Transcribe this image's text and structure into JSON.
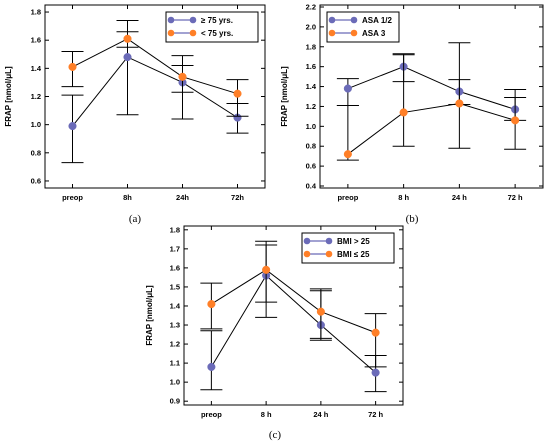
{
  "chart_data": [
    {
      "type": "line",
      "panel_label": "(a)",
      "categories": [
        "preop",
        "8h",
        "24h",
        "72h"
      ],
      "ylabel": "FRAP [nmol/μL]",
      "xlabel": "",
      "ylim": [
        0.55,
        1.85
      ],
      "yticks": [
        "0.6",
        "0.8",
        "1.0",
        "1.2",
        "1.4",
        "1.6",
        "1.8"
      ],
      "legend_position": "top-right",
      "error_bars": true,
      "grid": false,
      "series": [
        {
          "name": "≥ 75 yrs.",
          "color": "#6b6bb8",
          "values": [
            0.99,
            1.48,
            1.3,
            1.05
          ],
          "err_low": [
            0.73,
            1.07,
            1.04,
            0.94
          ],
          "err_high": [
            1.21,
            1.74,
            1.42,
            1.15
          ]
        },
        {
          "name": "< 75 yrs.",
          "color": "#ff7f27",
          "values": [
            1.41,
            1.61,
            1.34,
            1.22
          ],
          "err_low": [
            1.27,
            1.55,
            1.23,
            1.06
          ],
          "err_high": [
            1.52,
            1.66,
            1.49,
            1.32
          ]
        }
      ]
    },
    {
      "type": "line",
      "panel_label": "(b)",
      "categories": [
        "preop",
        "8 h",
        "24 h",
        "72 h"
      ],
      "ylabel": "FRAP [nmol/μL]",
      "xlabel": "",
      "ylim": [
        0.38,
        2.22
      ],
      "yticks": [
        "0.4",
        "0.6",
        "0.8",
        "1.0",
        "1.2",
        "1.4",
        "1.6",
        "1.8",
        "2.0",
        "2.2"
      ],
      "legend_position": "top-left",
      "error_bars": true,
      "grid": false,
      "series": [
        {
          "name": "ASA 1/2",
          "color": "#6b6bb8",
          "values": [
            1.38,
            1.6,
            1.35,
            1.17
          ],
          "err_low": [
            1.21,
            1.45,
            1.22,
            1.06
          ],
          "err_high": [
            1.48,
            1.73,
            1.47,
            1.29
          ]
        },
        {
          "name": "ASA 3",
          "color": "#ff7f27",
          "values": [
            0.72,
            1.14,
            1.23,
            1.06
          ],
          "err_low": [
            0.66,
            0.8,
            0.78,
            0.77
          ],
          "err_high": [
            1.21,
            1.72,
            1.84,
            1.37
          ]
        }
      ]
    },
    {
      "type": "line",
      "panel_label": "(c)",
      "categories": [
        "preop",
        "8 h",
        "24 h",
        "72 h"
      ],
      "ylabel": "FRAP [nmol/μL]",
      "xlabel": "",
      "ylim": [
        0.88,
        1.82
      ],
      "yticks": [
        "0.9",
        "1.0",
        "1.1",
        "1.2",
        "1.3",
        "1.4",
        "1.5",
        "1.6",
        "1.7",
        "1.8"
      ],
      "legend_position": "top-right",
      "error_bars": true,
      "grid": false,
      "series": [
        {
          "name": "BMI > 25",
          "color": "#6b6bb8",
          "values": [
            1.08,
            1.56,
            1.3,
            1.05
          ],
          "err_low": [
            0.96,
            1.34,
            1.22,
            0.95
          ],
          "err_high": [
            1.27,
            1.74,
            1.49,
            1.14
          ]
        },
        {
          "name": "BMI ≤ 25",
          "color": "#ff7f27",
          "values": [
            1.41,
            1.59,
            1.37,
            1.26
          ],
          "err_low": [
            1.28,
            1.42,
            1.23,
            1.08
          ],
          "err_high": [
            1.52,
            1.72,
            1.48,
            1.36
          ]
        }
      ]
    }
  ]
}
